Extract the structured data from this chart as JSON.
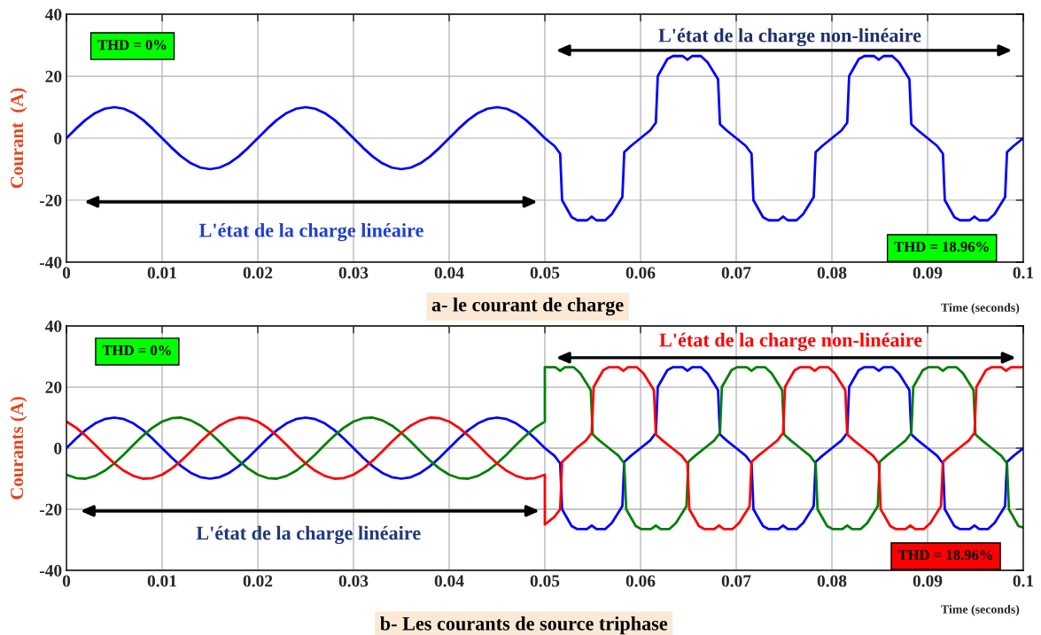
{
  "chart_data": [
    {
      "type": "line",
      "xlabel": "Time (seconds)",
      "ylabel": "Courant  (A)",
      "xlim": [
        0,
        0.1
      ],
      "ylim": [
        -40,
        40
      ],
      "xticks": [
        0,
        0.01,
        0.02,
        0.03,
        0.04,
        0.05,
        0.06,
        0.07,
        0.08,
        0.09,
        0.1
      ],
      "yticks": [
        -40,
        -20,
        0,
        20,
        40
      ],
      "grid": true,
      "annotations": [
        "THD = 0%",
        "L'état de la charge non-linéaire",
        "L'état de la charge linéaire",
        "THD = 18.96%",
        "a- le courant de charge"
      ],
      "series": [
        {
          "color": "#0000ff",
          "x": [
            0,
            0.001,
            0.002,
            0.003,
            0.004,
            0.005,
            0.006,
            0.007,
            0.008,
            0.009,
            0.01,
            0.011,
            0.012,
            0.013,
            0.014,
            0.015,
            0.016,
            0.017,
            0.018,
            0.019,
            0.02,
            0.021,
            0.022,
            0.023,
            0.024,
            0.025,
            0.026,
            0.027,
            0.028,
            0.029,
            0.03,
            0.031,
            0.032,
            0.033,
            0.034,
            0.035,
            0.036,
            0.037,
            0.038,
            0.039,
            0.04,
            0.041,
            0.042,
            0.043,
            0.044,
            0.045,
            0.046,
            0.047,
            0.048,
            0.049,
            0.05,
            0.051,
            0.0516,
            0.0518,
            0.0528,
            0.0534,
            0.0544,
            0.0549,
            0.0554,
            0.0563,
            0.057,
            0.0581,
            0.0583,
            0.059,
            0.06,
            0.061,
            0.0616,
            0.0618,
            0.0628,
            0.0634,
            0.0644,
            0.0649,
            0.0654,
            0.0663,
            0.067,
            0.0681,
            0.0683,
            0.069,
            0.07,
            0.071,
            0.0716,
            0.0718,
            0.0728,
            0.0734,
            0.0744,
            0.0749,
            0.0754,
            0.0763,
            0.077,
            0.0781,
            0.0783,
            0.079,
            0.08,
            0.081,
            0.0816,
            0.0818,
            0.0828,
            0.0834,
            0.0844,
            0.0849,
            0.0854,
            0.0863,
            0.087,
            0.0881,
            0.0883,
            0.089,
            0.09,
            0.091,
            0.0916,
            0.0918,
            0.0928,
            0.0934,
            0.0944,
            0.0949,
            0.0954,
            0.0963,
            0.097,
            0.0981,
            0.0983,
            0.099,
            0.1
          ],
          "values": [
            0,
            3.1,
            5.9,
            8.1,
            9.5,
            10,
            9.5,
            8.1,
            5.9,
            3.1,
            0,
            -3.1,
            -5.9,
            -8.1,
            -9.5,
            -10,
            -9.5,
            -8.1,
            -5.9,
            -3.1,
            0,
            3.1,
            5.9,
            8.1,
            9.5,
            10,
            9.5,
            8.1,
            5.9,
            3.1,
            0,
            -3.1,
            -5.9,
            -8.1,
            -9.5,
            -10,
            -9.5,
            -8.1,
            -5.9,
            -3.1,
            0,
            3.1,
            5.9,
            8.1,
            9.5,
            10,
            9.5,
            8.1,
            5.9,
            3.1,
            0,
            -2.5,
            -5,
            -20,
            -25.5,
            -26.5,
            -26.5,
            -25.3,
            -26.5,
            -26.5,
            -24.5,
            -19,
            -4.5,
            -2.5,
            0,
            2.5,
            5,
            20,
            25.5,
            26.5,
            26.5,
            25.3,
            26.5,
            26.5,
            24.5,
            19,
            4.5,
            2.5,
            0,
            -2.5,
            -5,
            -20,
            -25.5,
            -26.5,
            -26.5,
            -25.3,
            -26.5,
            -26.5,
            -24.5,
            -19,
            -4.5,
            -2.5,
            0,
            2.5,
            5,
            20,
            25.5,
            26.5,
            26.5,
            25.3,
            26.5,
            26.5,
            24.5,
            19,
            4.5,
            2.5,
            0,
            -2.5,
            -5,
            -20,
            -25.5,
            -26.5,
            -26.5,
            -25.3,
            -26.5,
            -26.5,
            -24.5,
            -19,
            -4.5,
            -2.5,
            0
          ]
        }
      ]
    },
    {
      "type": "line",
      "xlabel": "Time (seconds)",
      "ylabel": "Courants (A)",
      "xlim": [
        0,
        0.1
      ],
      "ylim": [
        -40,
        40
      ],
      "xticks": [
        0,
        0.01,
        0.02,
        0.03,
        0.04,
        0.05,
        0.06,
        0.07,
        0.08,
        0.09,
        0.1
      ],
      "yticks": [
        -40,
        -20,
        0,
        20,
        40
      ],
      "grid": true,
      "annotations": [
        "THD = 0%",
        "L'état de la charge non-linéaire",
        "L'état de la charge linéaire",
        "THD = 18.96%",
        "b- Les courants de source triphase"
      ],
      "series": [
        {
          "color": "#0000ff",
          "x": [
            0,
            0.001,
            0.002,
            0.003,
            0.004,
            0.005,
            0.006,
            0.007,
            0.008,
            0.009,
            0.01,
            0.011,
            0.012,
            0.013,
            0.014,
            0.015,
            0.016,
            0.017,
            0.018,
            0.019,
            0.02,
            0.021,
            0.022,
            0.023,
            0.024,
            0.025,
            0.026,
            0.027,
            0.028,
            0.029,
            0.03,
            0.031,
            0.032,
            0.033,
            0.034,
            0.035,
            0.036,
            0.037,
            0.038,
            0.039,
            0.04,
            0.041,
            0.042,
            0.043,
            0.044,
            0.045,
            0.046,
            0.047,
            0.048,
            0.049,
            0.05,
            0.051,
            0.0516,
            0.0518,
            0.0528,
            0.0534,
            0.0544,
            0.0549,
            0.0554,
            0.0563,
            0.057,
            0.0581,
            0.0583,
            0.059,
            0.06,
            0.061,
            0.0616,
            0.0618,
            0.0628,
            0.0634,
            0.0644,
            0.0649,
            0.0654,
            0.0663,
            0.067,
            0.0681,
            0.0683,
            0.069,
            0.07,
            0.071,
            0.0716,
            0.0718,
            0.0728,
            0.0734,
            0.0744,
            0.0749,
            0.0754,
            0.0763,
            0.077,
            0.0781,
            0.0783,
            0.079,
            0.08,
            0.081,
            0.0816,
            0.0818,
            0.0828,
            0.0834,
            0.0844,
            0.0849,
            0.0854,
            0.0863,
            0.087,
            0.0881,
            0.0883,
            0.089,
            0.09,
            0.091,
            0.0916,
            0.0918,
            0.0928,
            0.0934,
            0.0944,
            0.0949,
            0.0954,
            0.0963,
            0.097,
            0.0981,
            0.0983,
            0.099,
            0.1
          ],
          "values": [
            0,
            3.1,
            5.9,
            8.1,
            9.5,
            10,
            9.5,
            8.1,
            5.9,
            3.1,
            0,
            -3.1,
            -5.9,
            -8.1,
            -9.5,
            -10,
            -9.5,
            -8.1,
            -5.9,
            -3.1,
            0,
            3.1,
            5.9,
            8.1,
            9.5,
            10,
            9.5,
            8.1,
            5.9,
            3.1,
            0,
            -3.1,
            -5.9,
            -8.1,
            -9.5,
            -10,
            -9.5,
            -8.1,
            -5.9,
            -3.1,
            0,
            3.1,
            5.9,
            8.1,
            9.5,
            10,
            9.5,
            8.1,
            5.9,
            3.1,
            0,
            -2.5,
            -5,
            -20,
            -25.5,
            -26.5,
            -26.5,
            -25.3,
            -26.5,
            -26.5,
            -24.5,
            -19,
            -4.5,
            -2.5,
            0,
            2.5,
            5,
            20,
            25.5,
            26.5,
            26.5,
            25.3,
            26.5,
            26.5,
            24.5,
            19,
            4.5,
            2.5,
            0,
            -2.5,
            -5,
            -20,
            -25.5,
            -26.5,
            -26.5,
            -25.3,
            -26.5,
            -26.5,
            -24.5,
            -19,
            -4.5,
            -2.5,
            0,
            2.5,
            5,
            20,
            25.5,
            26.5,
            26.5,
            25.3,
            26.5,
            26.5,
            24.5,
            19,
            4.5,
            2.5,
            0,
            -2.5,
            -5,
            -20,
            -25.5,
            -26.5,
            -26.5,
            -25.3,
            -26.5,
            -26.5,
            -24.5,
            -19,
            -4.5,
            -2.5,
            0
          ]
        },
        {
          "color": "#008000",
          "x": [
            0,
            0.001,
            0.002,
            0.003,
            0.004,
            0.005,
            0.006,
            0.007,
            0.008,
            0.009,
            0.01,
            0.011,
            0.012,
            0.013,
            0.014,
            0.015,
            0.016,
            0.017,
            0.018,
            0.019,
            0.02,
            0.021,
            0.022,
            0.023,
            0.024,
            0.025,
            0.026,
            0.027,
            0.028,
            0.029,
            0.03,
            0.031,
            0.032,
            0.033,
            0.034,
            0.035,
            0.036,
            0.037,
            0.038,
            0.039,
            0.04,
            0.041,
            0.042,
            0.043,
            0.044,
            0.045,
            0.046,
            0.047,
            0.048,
            0.049,
            0.05,
            0.05,
            0.0511,
            0.0516,
            0.0521,
            0.053,
            0.0537,
            0.0548,
            0.055,
            0.0557,
            0.0567,
            0.0577,
            0.0583,
            0.0585,
            0.0595,
            0.0601,
            0.0611,
            0.0616,
            0.0621,
            0.063,
            0.0637,
            0.0648,
            0.065,
            0.0657,
            0.0667,
            0.0677,
            0.0683,
            0.0685,
            0.0695,
            0.0701,
            0.0711,
            0.0716,
            0.0721,
            0.073,
            0.0737,
            0.0748,
            0.075,
            0.0757,
            0.0767,
            0.0777,
            0.0783,
            0.0785,
            0.0795,
            0.0801,
            0.0811,
            0.0816,
            0.0821,
            0.083,
            0.0837,
            0.0848,
            0.085,
            0.0857,
            0.0867,
            0.0877,
            0.0883,
            0.0885,
            0.0895,
            0.0901,
            0.0911,
            0.0916,
            0.0921,
            0.093,
            0.0937,
            0.0948,
            0.095,
            0.0957,
            0.0967,
            0.0977,
            0.0983,
            0.0985,
            0.0995,
            0.1
          ],
          "values": [
            -8.7,
            -9.8,
            -10,
            -9.1,
            -7.4,
            -5,
            -2.1,
            1.1,
            4.1,
            6.7,
            8.7,
            9.8,
            10,
            9.1,
            7.4,
            5,
            2.1,
            -1.1,
            -4.1,
            -6.7,
            -8.7,
            -9.8,
            -10,
            -9.1,
            -7.4,
            -5,
            -2.1,
            1.1,
            4.1,
            6.7,
            8.7,
            9.8,
            10,
            9.1,
            7.4,
            5,
            2.1,
            -1.1,
            -4.1,
            -6.7,
            -8.7,
            -9.8,
            -10,
            -9.1,
            -7.4,
            -5,
            -2.1,
            1.1,
            4.1,
            6.7,
            8.7,
            26.5,
            26.5,
            25.3,
            26.5,
            26.5,
            24.5,
            19,
            4.5,
            2.5,
            0,
            -2.5,
            -5,
            -20,
            -25.5,
            -26.5,
            -26.5,
            -25.3,
            -26.5,
            -26.5,
            -24.5,
            -19,
            -4.5,
            -2.5,
            0,
            2.5,
            5,
            20,
            25.5,
            26.5,
            26.5,
            25.3,
            26.5,
            26.5,
            24.5,
            19,
            4.5,
            2.5,
            0,
            -2.5,
            -5,
            -20,
            -25.5,
            -26.5,
            -26.5,
            -25.3,
            -26.5,
            -26.5,
            -24.5,
            -19,
            -4.5,
            -2.5,
            0,
            2.5,
            5,
            20,
            25.5,
            26.5,
            26.5,
            25.3,
            26.5,
            26.5,
            24.5,
            19,
            4.5,
            2.5,
            0,
            -2.5,
            -5,
            -20,
            -25.5,
            -26
          ]
        },
        {
          "color": "#ff0000",
          "x": [
            0,
            0.001,
            0.002,
            0.003,
            0.004,
            0.005,
            0.006,
            0.007,
            0.008,
            0.009,
            0.01,
            0.011,
            0.012,
            0.013,
            0.014,
            0.015,
            0.016,
            0.017,
            0.018,
            0.019,
            0.02,
            0.021,
            0.022,
            0.023,
            0.024,
            0.025,
            0.026,
            0.027,
            0.028,
            0.029,
            0.03,
            0.031,
            0.032,
            0.033,
            0.034,
            0.035,
            0.036,
            0.037,
            0.038,
            0.039,
            0.04,
            0.041,
            0.042,
            0.043,
            0.044,
            0.045,
            0.046,
            0.047,
            0.048,
            0.049,
            0.05,
            0.05,
            0.051,
            0.0516,
            0.0518,
            0.0525,
            0.0533,
            0.0543,
            0.0549,
            0.0551,
            0.0561,
            0.0567,
            0.0577,
            0.0582,
            0.0587,
            0.0596,
            0.0603,
            0.0614,
            0.0616,
            0.0623,
            0.0633,
            0.0643,
            0.0649,
            0.0651,
            0.0661,
            0.0667,
            0.0677,
            0.0682,
            0.0687,
            0.0696,
            0.0703,
            0.0714,
            0.0716,
            0.0723,
            0.0733,
            0.0743,
            0.0749,
            0.0751,
            0.0761,
            0.0767,
            0.0777,
            0.0782,
            0.0787,
            0.0796,
            0.0803,
            0.0814,
            0.0816,
            0.0823,
            0.0833,
            0.0843,
            0.0849,
            0.0851,
            0.0861,
            0.0867,
            0.0877,
            0.0882,
            0.0887,
            0.0896,
            0.0903,
            0.0914,
            0.0916,
            0.0923,
            0.0933,
            0.0943,
            0.0949,
            0.0951,
            0.0961,
            0.0967,
            0.0977,
            0.0982,
            0.0987,
            0.1
          ],
          "values": [
            8.7,
            6.7,
            4.1,
            1.1,
            -2.1,
            -5,
            -7.4,
            -9.1,
            -10,
            -9.8,
            -8.7,
            -6.7,
            -4.1,
            -1.1,
            2.1,
            5,
            7.4,
            9.1,
            10,
            9.8,
            8.7,
            6.7,
            4.1,
            1.1,
            -2.1,
            -5,
            -7.4,
            -9.1,
            -10,
            -9.8,
            -8.7,
            -6.7,
            -4.1,
            -1.1,
            2.1,
            5,
            7.4,
            9.1,
            10,
            9.8,
            8.7,
            6.7,
            4.1,
            1.1,
            -2.1,
            -5,
            -7.4,
            -9.1,
            -10,
            -9.8,
            -8.7,
            -25,
            -22.5,
            -20,
            -4.5,
            -2.5,
            0,
            2.5,
            5,
            20,
            25.5,
            26.5,
            26.5,
            25.3,
            26.5,
            26.5,
            24.5,
            19,
            4.5,
            2.5,
            0,
            -2.5,
            -5,
            -20,
            -25.5,
            -26.5,
            -26.5,
            -25.3,
            -26.5,
            -26.5,
            -24.5,
            -19,
            -4.5,
            -2.5,
            0,
            2.5,
            5,
            20,
            25.5,
            26.5,
            26.5,
            25.3,
            26.5,
            26.5,
            24.5,
            19,
            4.5,
            2.5,
            0,
            -2.5,
            -5,
            -20,
            -25.5,
            -26.5,
            -26.5,
            -25.3,
            -26.5,
            -26.5,
            -24.5,
            -19,
            -4.5,
            -2.5,
            0,
            2.5,
            5,
            20,
            25.5,
            26.5,
            26.5,
            25.3,
            26.5,
            26.5
          ]
        }
      ]
    }
  ]
}
